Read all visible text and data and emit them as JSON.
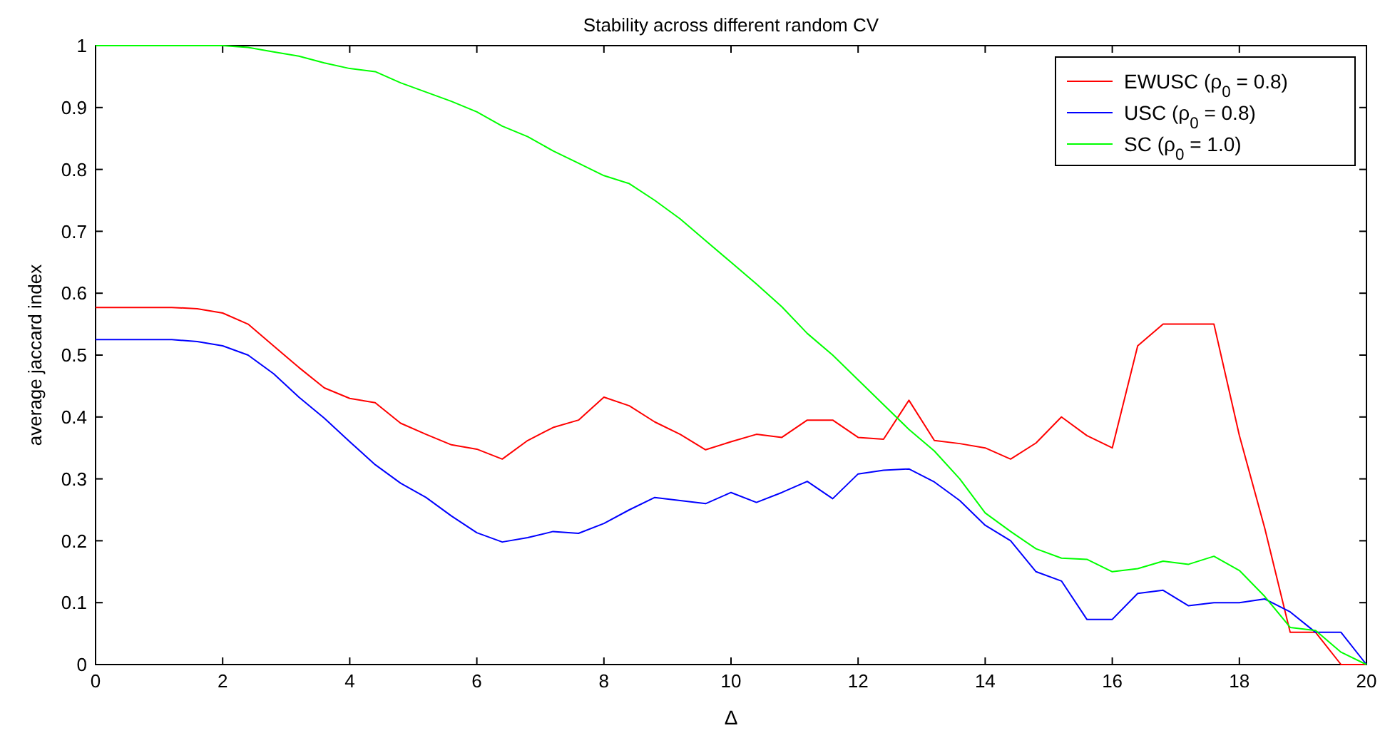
{
  "chart_data": {
    "type": "line",
    "title": "Stability across different random CV",
    "xlabel": "Δ",
    "ylabel": "average jaccard index",
    "x": [
      0,
      0.4,
      0.8,
      1.2,
      1.6,
      2.0,
      2.4,
      2.8,
      3.2,
      3.6,
      4.0,
      4.4,
      4.8,
      5.2,
      5.6,
      6.0,
      6.4,
      6.8,
      7.2,
      7.6,
      8.0,
      8.4,
      8.8,
      9.2,
      9.6,
      10.0,
      10.4,
      10.8,
      11.2,
      11.6,
      12.0,
      12.4,
      12.8,
      13.2,
      13.6,
      14.0,
      14.4,
      14.8,
      15.2,
      15.6,
      16.0,
      16.4,
      16.8,
      17.2,
      17.6,
      18.0,
      18.4,
      18.8,
      19.2,
      19.6,
      20
    ],
    "series": [
      {
        "name": "EWUSC (ρ$_{0}$ = 0.8)",
        "color": "#ff0000",
        "values": [
          0.577,
          0.577,
          0.577,
          0.577,
          0.575,
          0.568,
          0.55,
          0.515,
          0.48,
          0.447,
          0.43,
          0.423,
          0.39,
          0.372,
          0.355,
          0.348,
          0.332,
          0.362,
          0.383,
          0.395,
          0.432,
          0.418,
          0.392,
          0.372,
          0.347,
          0.36,
          0.372,
          0.367,
          0.395,
          0.395,
          0.367,
          0.364,
          0.427,
          0.362,
          0.357,
          0.35,
          0.332,
          0.358,
          0.4,
          0.37,
          0.35,
          0.515,
          0.55,
          0.55,
          0.55,
          0.37,
          0.22,
          0.052,
          0.052,
          0,
          0
        ]
      },
      {
        "name": "USC (ρ$_{0}$ = 0.8)",
        "color": "#0000ff",
        "values": [
          0.525,
          0.525,
          0.525,
          0.525,
          0.522,
          0.515,
          0.5,
          0.47,
          0.432,
          0.398,
          0.36,
          0.323,
          0.293,
          0.27,
          0.24,
          0.213,
          0.198,
          0.205,
          0.215,
          0.212,
          0.228,
          0.25,
          0.27,
          0.265,
          0.26,
          0.278,
          0.262,
          0.278,
          0.296,
          0.268,
          0.308,
          0.314,
          0.316,
          0.295,
          0.265,
          0.225,
          0.2,
          0.15,
          0.135,
          0.073,
          0.073,
          0.115,
          0.12,
          0.095,
          0.1,
          0.1,
          0.106,
          0.085,
          0.052,
          0.052,
          0
        ]
      },
      {
        "name": "SC (ρ$_{0}$ = 1.0)",
        "color": "#00ff00",
        "values": [
          1,
          1,
          1,
          1,
          1,
          1,
          0.997,
          0.99,
          0.983,
          0.972,
          0.963,
          0.958,
          0.94,
          0.925,
          0.91,
          0.893,
          0.87,
          0.853,
          0.83,
          0.81,
          0.79,
          0.777,
          0.75,
          0.72,
          0.685,
          0.65,
          0.615,
          0.578,
          0.535,
          0.5,
          0.46,
          0.42,
          0.38,
          0.345,
          0.3,
          0.245,
          0.215,
          0.187,
          0.172,
          0.17,
          0.15,
          0.155,
          0.167,
          0.162,
          0.175,
          0.152,
          0.11,
          0.06,
          0.055,
          0.02,
          0
        ]
      }
    ],
    "xlim": [
      0,
      20
    ],
    "xticks": [
      0,
      2,
      4,
      6,
      8,
      10,
      12,
      14,
      16,
      18,
      20
    ],
    "ylim": [
      0,
      1
    ],
    "yticks": [
      0,
      0.1,
      0.2,
      0.3,
      0.4,
      0.5,
      0.6,
      0.7,
      0.8,
      0.9,
      1
    ],
    "legend": "top right",
    "grid": false,
    "marker": "none",
    "line_style": "solid"
  }
}
